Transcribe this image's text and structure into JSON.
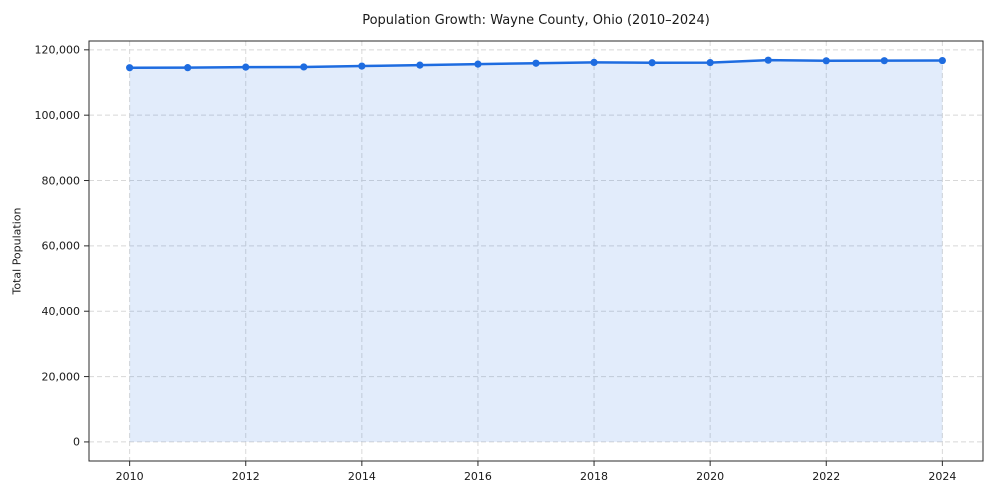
{
  "chart_data": {
    "type": "line",
    "title": "Population Growth: Wayne County, Ohio (2010–2024)",
    "xlabel": "",
    "ylabel": "Total Population",
    "x": [
      2010,
      2011,
      2012,
      2013,
      2014,
      2015,
      2016,
      2017,
      2018,
      2019,
      2020,
      2021,
      2022,
      2023,
      2024
    ],
    "series": [
      {
        "name": "Total Population",
        "values": [
          114520,
          114545,
          114700,
          114760,
          115030,
          115320,
          115620,
          115900,
          116150,
          116040,
          116100,
          116830,
          116640,
          116680,
          116720
        ]
      }
    ],
    "xlim": [
      2009.3,
      2024.7
    ],
    "ylim": [
      -5840,
      122700
    ],
    "xticks": {
      "values": [
        2010,
        2012,
        2014,
        2016,
        2018,
        2020,
        2022,
        2024
      ],
      "labels": [
        "2010",
        "2012",
        "2014",
        "2016",
        "2018",
        "2020",
        "2022",
        "2024"
      ]
    },
    "yticks": {
      "values": [
        0,
        20000,
        40000,
        60000,
        80000,
        100000,
        120000
      ],
      "labels": [
        "0",
        "20,000",
        "40,000",
        "60,000",
        "80,000",
        "100,000",
        "120,000"
      ]
    },
    "grid": true,
    "grid_style": "dashed",
    "area_fill": true,
    "markers": true,
    "legend": "none",
    "colors": {
      "line": "#1e6ce0",
      "fill": "#1e6ce0",
      "fill_opacity": 0.13,
      "grid": "#d8d8d8",
      "spine": "#2b2b2b",
      "tick_text": "#1a1a1a"
    }
  }
}
